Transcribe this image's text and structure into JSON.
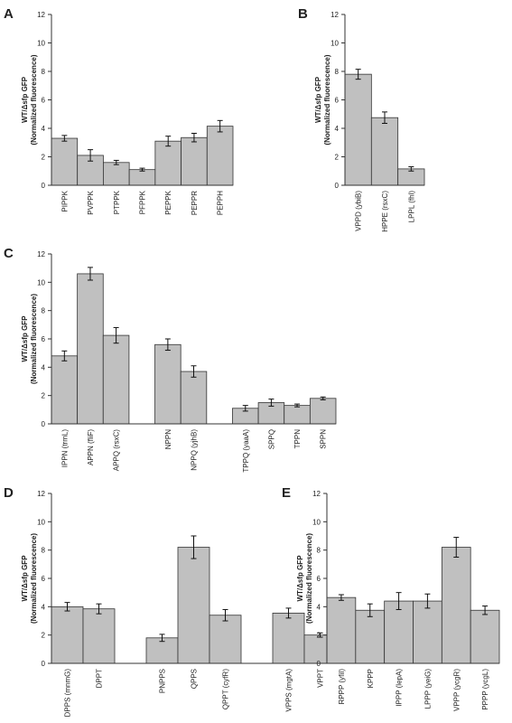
{
  "chart_data": [
    {
      "type": "bar",
      "panel": "A",
      "ylabel": [
        "WT/Δsfp GFP",
        "(Normalized fluorescence)"
      ],
      "categories": [
        "PIPPK",
        "PVPPK",
        "PTPPK",
        "PFPPK",
        "PEPPK",
        "PEPPR",
        "PEPPH"
      ],
      "values": [
        3.3,
        2.1,
        1.6,
        1.1,
        3.1,
        3.35,
        4.15
      ],
      "errors": [
        0.2,
        0.4,
        0.15,
        0.1,
        0.35,
        0.3,
        0.4
      ],
      "color": "#c0c0c0",
      "ylim": [
        0,
        12
      ],
      "yticks": [
        0,
        2,
        4,
        6,
        8,
        10,
        12
      ]
    },
    {
      "type": "bar",
      "panel": "B",
      "ylabel": [
        "WT/Δsfp GFP",
        "(Normalized fluorescence)"
      ],
      "categories": [
        "VPPD (ybiB)",
        "HPPE (rsxC)",
        "LPPL (fhl)"
      ],
      "values": [
        7.8,
        4.75,
        1.15
      ],
      "errors": [
        0.35,
        0.4,
        0.15
      ],
      "color": "#c0c0c0",
      "ylim": [
        0,
        12
      ],
      "yticks": [
        0,
        2,
        4,
        6,
        8,
        10,
        12
      ]
    },
    {
      "type": "bar",
      "panel": "C",
      "ylabel": [
        "WT/Δsfp GFP",
        "(Normalized fluorescence)"
      ],
      "categories": [
        "IPPN (trmL)",
        "APPN (fliF)",
        "APPQ (rsxC)",
        null,
        "NPPN",
        "NPPQ (yjhB)",
        null,
        "TPPQ (yaaA)",
        "SPPQ",
        "TPPN",
        "SPPN"
      ],
      "values": [
        4.8,
        10.6,
        6.25,
        null,
        5.6,
        3.7,
        null,
        1.1,
        1.5,
        1.3,
        1.8
      ],
      "errors": [
        0.35,
        0.45,
        0.55,
        null,
        0.4,
        0.4,
        null,
        0.2,
        0.25,
        0.1,
        0.1
      ],
      "color": "#c0c0c0",
      "ylim": [
        0,
        12
      ],
      "yticks": [
        0,
        2,
        4,
        6,
        8,
        10,
        12
      ]
    },
    {
      "type": "bar",
      "panel": "D",
      "ylabel": [
        "WT/Δsfp GFP",
        "(Normalized fluorescence)"
      ],
      "categories": [
        "DPPS (mnmG)",
        "DPPT",
        null,
        "PNPPS",
        "QPPS",
        "QPPT (cyfR)",
        null,
        "VPPS (mgtA)",
        "VPPT"
      ],
      "values": [
        4.0,
        3.85,
        null,
        1.8,
        8.2,
        3.4,
        null,
        3.55,
        2.0
      ],
      "errors": [
        0.3,
        0.35,
        null,
        0.25,
        0.8,
        0.4,
        null,
        0.35,
        0.15
      ],
      "color": "#c0c0c0",
      "ylim": [
        0,
        12
      ],
      "yticks": [
        0,
        2,
        4,
        6,
        8,
        10,
        12
      ]
    },
    {
      "type": "bar",
      "panel": "E",
      "ylabel": [
        "WT/Δsfp GFP",
        "(Normalized fluorescence)"
      ],
      "categories": [
        "RPPP (yfiI)",
        "KPPP",
        "IPPP (lepA)",
        "LPPP (yeiG)",
        "VPPP (ycgR)",
        "PPPP (ycgL)"
      ],
      "values": [
        4.65,
        3.75,
        4.4,
        4.4,
        8.2,
        3.75
      ],
      "errors": [
        0.2,
        0.45,
        0.6,
        0.5,
        0.7,
        0.3
      ],
      "color": "#c0c0c0",
      "ylim": [
        0,
        12
      ],
      "yticks": [
        0,
        2,
        4,
        6,
        8,
        10,
        12
      ]
    }
  ]
}
